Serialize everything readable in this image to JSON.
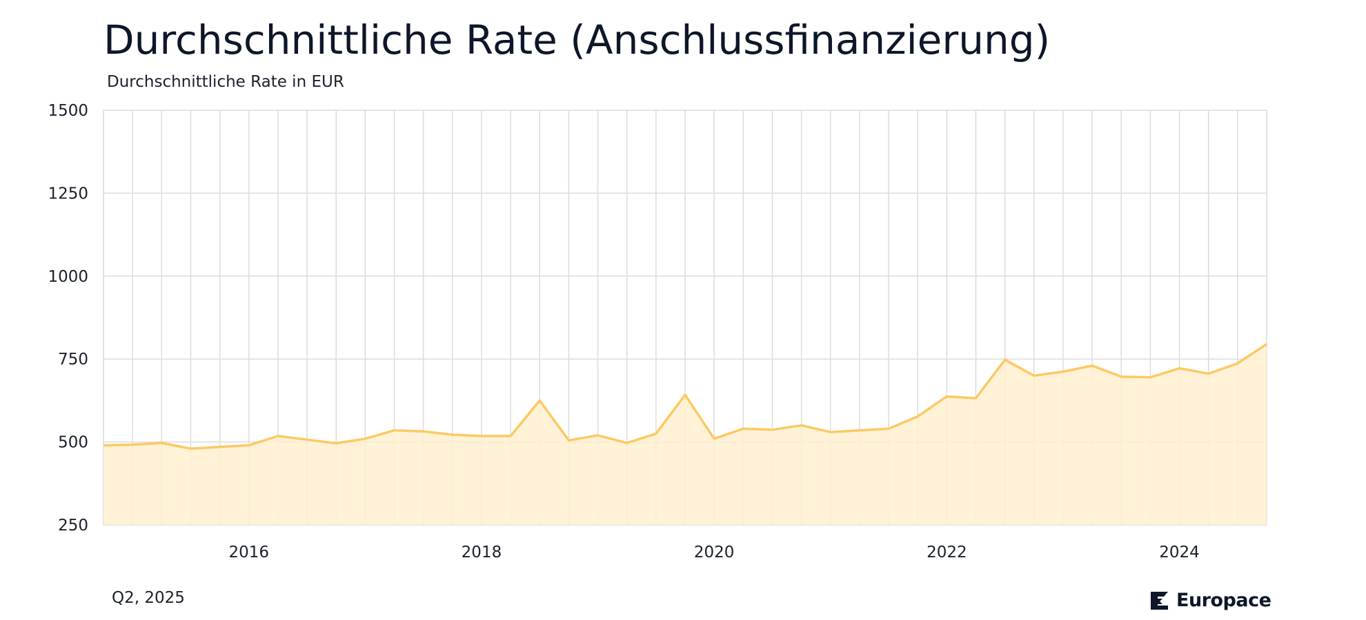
{
  "header": {
    "title": "Durchschnittliche Rate (Anschlussfinanzierung)",
    "subtitle": "Durchschnittliche Rate in EUR"
  },
  "footer": {
    "date": "Q2, 2025",
    "brand": "Europace",
    "brand_icon": "europace-logo-icon"
  },
  "colors": {
    "line": "#fcc964",
    "fill": "#fff0cf",
    "grid": "#dcdcdc"
  },
  "chart_data": {
    "type": "area",
    "title": "Durchschnittliche Rate (Anschlussfinanzierung)",
    "subtitle": "Durchschnittliche Rate in EUR",
    "ylim": [
      250,
      1500
    ],
    "yticks": [
      250,
      500,
      750,
      1000,
      1250,
      1500
    ],
    "xlim": [
      "2014-Q4",
      "2024-Q4"
    ],
    "xticks": [
      {
        "label": "2016",
        "x": "2016-Q1"
      },
      {
        "label": "2018",
        "x": "2018-Q1"
      },
      {
        "label": "2020",
        "x": "2020-Q1"
      },
      {
        "label": "2022",
        "x": "2022-Q1"
      },
      {
        "label": "2024",
        "x": "2024-Q1"
      }
    ],
    "grid": true,
    "series": [
      {
        "x": [
          "2014-Q4",
          "2015-Q1",
          "2015-Q2",
          "2015-Q3",
          "2015-Q4",
          "2016-Q1",
          "2016-Q2",
          "2016-Q3",
          "2016-Q4",
          "2017-Q1",
          "2017-Q2",
          "2017-Q3",
          "2017-Q4",
          "2018-Q1",
          "2018-Q2",
          "2018-Q3",
          "2018-Q4",
          "2019-Q1",
          "2019-Q2",
          "2019-Q3",
          "2019-Q4",
          "2020-Q1",
          "2020-Q2",
          "2020-Q3",
          "2020-Q4",
          "2021-Q1",
          "2021-Q2",
          "2021-Q3",
          "2021-Q4",
          "2022-Q1",
          "2022-Q2",
          "2022-Q3",
          "2022-Q4",
          "2023-Q1",
          "2023-Q2",
          "2023-Q3",
          "2023-Q4",
          "2024-Q1",
          "2024-Q2",
          "2024-Q3",
          "2024-Q4"
        ],
        "values": [
          490,
          492,
          497,
          480,
          485,
          490,
          518,
          507,
          496,
          510,
          535,
          532,
          522,
          518,
          518,
          625,
          505,
          520,
          497,
          525,
          642,
          510,
          540,
          537,
          550,
          530,
          535,
          540,
          577,
          637,
          632,
          748,
          700,
          712,
          730,
          697,
          695,
          722,
          706,
          737,
          795
        ]
      }
    ]
  }
}
